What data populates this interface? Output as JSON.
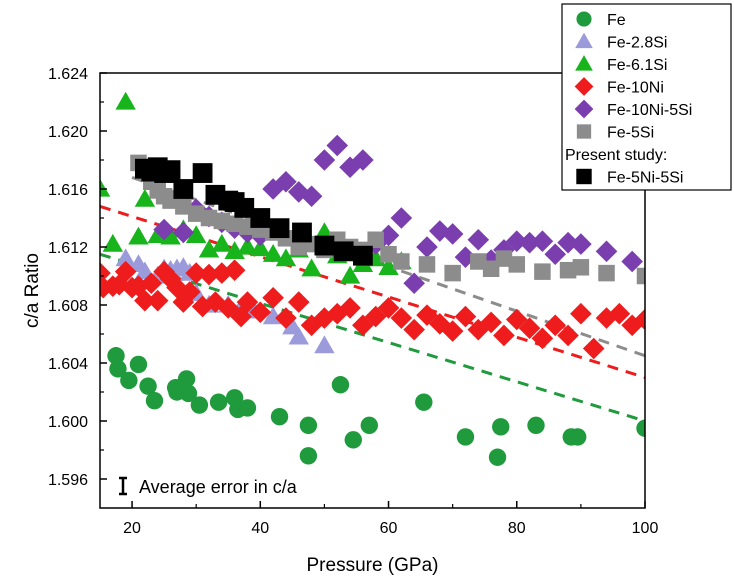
{
  "chart_data": {
    "type": "scatter",
    "title": "",
    "xlabel": "Pressure (GPa)",
    "ylabel": "c/a Ratio",
    "xlim": [
      15,
      100
    ],
    "ylim": [
      1.594,
      1.624
    ],
    "xticks": [
      20,
      40,
      60,
      80,
      100
    ],
    "yticks": [
      1.596,
      1.6,
      1.604,
      1.608,
      1.612,
      1.616,
      1.62,
      1.624
    ],
    "ytick_labels": [
      "1.596",
      "1.600",
      "1.604",
      "1.608",
      "1.612",
      "1.616",
      "1.620",
      "1.624"
    ],
    "xtick_labels": [
      "20",
      "40",
      "60",
      "80",
      "100"
    ],
    "grid": false,
    "legend_position": "top-right, outside",
    "annotation": "Average error in c/a",
    "legend_heading": "Present study:",
    "series": [
      {
        "name": "Fe",
        "marker": "circle",
        "color": "#1f9a3c",
        "x": [
          17.5,
          17.8,
          19.5,
          21,
          22.5,
          23.5,
          26.8,
          27,
          28.5,
          28.8,
          30.5,
          33.5,
          36,
          36.5,
          38,
          43,
          47.5,
          47.5,
          52.5,
          54.5,
          57,
          65.5,
          72,
          77,
          77.5,
          83,
          88.5,
          89.5,
          100
        ],
        "y": [
          1.6045,
          1.6036,
          1.6028,
          1.6039,
          1.6024,
          1.6014,
          1.6023,
          1.602,
          1.6029,
          1.6019,
          1.6011,
          1.6013,
          1.6016,
          1.6008,
          1.6009,
          1.6003,
          1.5997,
          1.5976,
          1.6025,
          1.5987,
          1.5997,
          1.6013,
          1.5989,
          1.5975,
          1.5996,
          1.5997,
          1.5989,
          1.5989,
          1.5995
        ]
      },
      {
        "name": "Fe-2.8Si",
        "marker": "triangle",
        "color": "#9b9bdc",
        "x": [
          19,
          21,
          22,
          24,
          25,
          26,
          27,
          28,
          29,
          30,
          32,
          33,
          35,
          37,
          39,
          42,
          45,
          46,
          50
        ],
        "y": [
          1.6112,
          1.6108,
          1.6103,
          1.61,
          1.6105,
          1.6104,
          1.6105,
          1.6106,
          1.6102,
          1.6088,
          1.608,
          1.6082,
          1.608,
          1.6078,
          1.6076,
          1.6072,
          1.6065,
          1.6058,
          1.6052
        ]
      },
      {
        "name": "Fe-6.1Si",
        "marker": "triangle",
        "color": "#18b41c",
        "x": [
          15,
          17,
          19,
          21,
          22,
          24,
          26,
          28,
          30,
          32,
          34,
          36,
          38,
          40,
          42,
          44,
          46,
          48,
          50,
          52,
          54,
          56,
          58,
          60,
          62
        ],
        "y": [
          1.616,
          1.6122,
          1.622,
          1.6127,
          1.6153,
          1.6128,
          1.6127,
          1.6132,
          1.6128,
          1.6118,
          1.6122,
          1.6117,
          1.612,
          1.6119,
          1.6115,
          1.6112,
          1.6118,
          1.6105,
          1.613,
          1.6114,
          1.61,
          1.6108,
          1.6112,
          1.6106,
          1.611
        ]
      },
      {
        "name": "Fe-10Ni",
        "marker": "diamond",
        "color": "#ee1c1c",
        "x": [
          15,
          15.5,
          17,
          18,
          19,
          20,
          21,
          22,
          23,
          24,
          25,
          26,
          27,
          28,
          29,
          30,
          31,
          32,
          33,
          34,
          35,
          36,
          37,
          38,
          40,
          42,
          44,
          46,
          48,
          50,
          52,
          54,
          56,
          58,
          60,
          62,
          64,
          66,
          68,
          70,
          72,
          74,
          76,
          78,
          80,
          82,
          84,
          86,
          88,
          90,
          92,
          94,
          96,
          98,
          100
        ],
        "y": [
          1.6102,
          1.6092,
          1.6093,
          1.6094,
          1.6103,
          1.6092,
          1.6093,
          1.6083,
          1.6095,
          1.6083,
          1.6103,
          1.6098,
          1.6092,
          1.6082,
          1.6089,
          1.6102,
          1.6079,
          1.6101,
          1.6082,
          1.6102,
          1.6078,
          1.6104,
          1.6072,
          1.6082,
          1.6075,
          1.6085,
          1.6071,
          1.6082,
          1.6066,
          1.6071,
          1.6074,
          1.6078,
          1.6066,
          1.6072,
          1.6078,
          1.6071,
          1.6063,
          1.6073,
          1.6067,
          1.6062,
          1.6072,
          1.6063,
          1.6068,
          1.6059,
          1.607,
          1.6064,
          1.6057,
          1.6066,
          1.6059,
          1.6074,
          1.605,
          1.6071,
          1.6074,
          1.6066,
          1.607
        ]
      },
      {
        "name": "Fe-10Ni-5Si",
        "marker": "diamond",
        "color": "#7a3eae",
        "x": [
          25,
          28,
          30,
          32,
          34,
          36,
          38,
          40,
          42,
          44,
          46,
          48,
          50,
          52,
          54,
          56,
          58,
          60,
          62,
          64,
          66,
          68,
          70,
          72,
          74,
          76,
          78,
          80,
          82,
          84,
          86,
          88,
          90,
          94,
          98
        ],
        "y": [
          1.6132,
          1.613,
          1.6146,
          1.6141,
          1.6137,
          1.6133,
          1.613,
          1.6128,
          1.616,
          1.6165,
          1.6158,
          1.6155,
          1.618,
          1.619,
          1.6175,
          1.618,
          1.6122,
          1.6128,
          1.614,
          1.6095,
          1.612,
          1.6131,
          1.6129,
          1.6113,
          1.6125,
          1.6111,
          1.6118,
          1.6124,
          1.6123,
          1.6124,
          1.6115,
          1.6123,
          1.6122,
          1.6117,
          1.611
        ]
      },
      {
        "name": "Fe-5Si",
        "marker": "square",
        "color": "#8c8c8c",
        "x": [
          21,
          22,
          23,
          24,
          25,
          26,
          28,
          30,
          32,
          34,
          36,
          38,
          40,
          42,
          44,
          46,
          48,
          50,
          52,
          54,
          56,
          58,
          60,
          62,
          66,
          70,
          74,
          76,
          78,
          80,
          84,
          88,
          90,
          94,
          100
        ],
        "y": [
          1.6178,
          1.6172,
          1.6165,
          1.6159,
          1.6155,
          1.6152,
          1.6148,
          1.6143,
          1.614,
          1.6138,
          1.6136,
          1.6134,
          1.6132,
          1.613,
          1.6126,
          1.612,
          1.6122,
          1.6118,
          1.6125,
          1.612,
          1.6118,
          1.6125,
          1.6115,
          1.611,
          1.6108,
          1.6102,
          1.611,
          1.6105,
          1.6112,
          1.6108,
          1.6103,
          1.6104,
          1.6106,
          1.6102,
          1.61
        ]
      },
      {
        "name": "Fe-5Ni-5Si",
        "marker": "square",
        "color": "#000000",
        "x": [
          22,
          23,
          24,
          25,
          26,
          28,
          31,
          33,
          35,
          36,
          37.5,
          40,
          43,
          46.5,
          50,
          53,
          56
        ],
        "y": [
          1.6174,
          1.6172,
          1.6175,
          1.6171,
          1.6173,
          1.616,
          1.6171,
          1.6156,
          1.6152,
          1.6151,
          1.6147,
          1.614,
          1.6133,
          1.613,
          1.6121,
          1.6117,
          1.6114
        ]
      }
    ],
    "trend_lines": [
      {
        "series": "Fe",
        "color": "#1f9a3c",
        "style": "dashed",
        "x": [
          15,
          100
        ],
        "y": [
          1.6115,
          1.6
        ]
      },
      {
        "series": "Fe-10Ni",
        "color": "#ee1c1c",
        "style": "dashed",
        "x": [
          15,
          100
        ],
        "y": [
          1.6148,
          1.603
        ]
      },
      {
        "series": "Fe-5Si",
        "color": "#8c8c8c",
        "style": "dashed",
        "x": [
          20,
          100
        ],
        "y": [
          1.6168,
          1.6045
        ]
      }
    ]
  },
  "legend": {
    "entries": [
      {
        "label": "Fe",
        "marker": "circle",
        "color": "#1f9a3c"
      },
      {
        "label": "Fe-2.8Si",
        "marker": "triangle",
        "color": "#9b9bdc"
      },
      {
        "label": "Fe-6.1Si",
        "marker": "triangle",
        "color": "#18b41c"
      },
      {
        "label": "Fe-10Ni",
        "marker": "diamond",
        "color": "#ee1c1c"
      },
      {
        "label": "Fe-10Ni-5Si",
        "marker": "diamond",
        "color": "#7a3eae"
      },
      {
        "label": "Fe-5Si",
        "marker": "square",
        "color": "#8c8c8c"
      }
    ],
    "heading": "Present study:",
    "present": {
      "label": "Fe-5Ni-5Si",
      "marker": "square",
      "color": "#000000"
    }
  }
}
